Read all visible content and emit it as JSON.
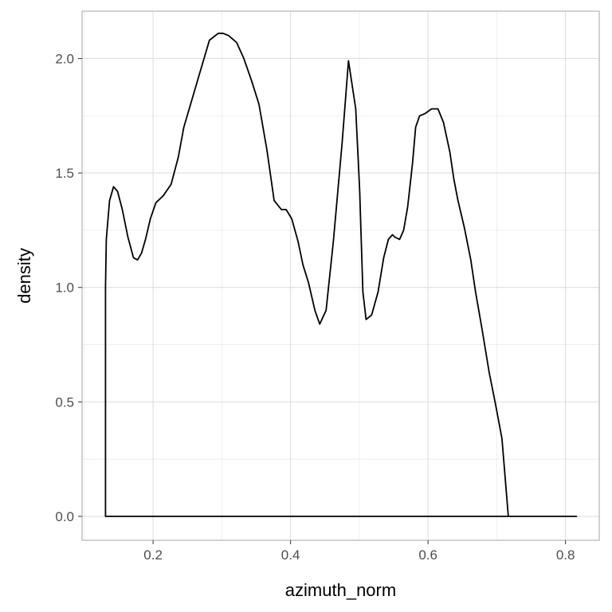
{
  "chart_data": {
    "type": "area",
    "xlabel": "azimuth_norm",
    "ylabel": "density",
    "xlim": [
      0.0967,
      0.8491
    ],
    "ylim": [
      -0.1044,
      2.2069
    ],
    "x_ticks": [
      {
        "value": 0.2,
        "label": "0.2"
      },
      {
        "value": 0.4,
        "label": "0.4"
      },
      {
        "value": 0.6,
        "label": "0.6"
      },
      {
        "value": 0.8,
        "label": "0.8"
      }
    ],
    "y_ticks": [
      {
        "value": 0.0,
        "label": "0.0"
      },
      {
        "value": 0.5,
        "label": "0.5"
      },
      {
        "value": 1.0,
        "label": "1.0"
      },
      {
        "value": 1.5,
        "label": "1.5"
      },
      {
        "value": 2.0,
        "label": "2.0"
      }
    ],
    "grid": true,
    "series": [
      {
        "x": [
          0.1308,
          0.132,
          0.1367,
          0.1425,
          0.1483,
          0.1553,
          0.1634,
          0.1715,
          0.1774,
          0.1832,
          0.189,
          0.196,
          0.2041,
          0.2146,
          0.2262,
          0.2367,
          0.2448,
          0.2564,
          0.2692,
          0.282,
          0.2948,
          0.3018,
          0.3099,
          0.3215,
          0.332,
          0.3436,
          0.3541,
          0.3657,
          0.3761,
          0.3866,
          0.3936,
          0.4017,
          0.411,
          0.418,
          0.4262,
          0.4355,
          0.4424,
          0.4517,
          0.4622,
          0.475,
          0.4843,
          0.4948,
          0.5006,
          0.5052,
          0.5099,
          0.518,
          0.5273,
          0.5355,
          0.5424,
          0.5482,
          0.5517,
          0.5587,
          0.5645,
          0.5703,
          0.5773,
          0.582,
          0.5878,
          0.5959,
          0.6052,
          0.6145,
          0.6226,
          0.6319,
          0.6378,
          0.6436,
          0.6529,
          0.6622,
          0.6692,
          0.6785,
          0.6889,
          0.6982,
          0.7075,
          0.7168,
          0.7261,
          0.7319,
          0.7389,
          0.7482,
          0.7586,
          0.768,
          0.7773,
          0.7866,
          0.7947,
          0.8029,
          0.8075,
          0.8121,
          0.8151,
          0.8161
        ],
        "y": [
          1.0,
          1.21,
          1.38,
          1.44,
          1.42,
          1.34,
          1.22,
          1.13,
          1.12,
          1.15,
          1.21,
          1.3,
          1.37,
          1.4,
          1.45,
          1.57,
          1.7,
          1.82,
          1.95,
          2.08,
          2.11,
          2.11,
          2.1,
          2.07,
          2.0,
          1.9,
          1.8,
          1.6,
          1.38,
          1.34,
          1.34,
          1.3,
          1.2,
          1.1,
          1.02,
          0.9,
          0.84,
          0.9,
          1.2,
          1.63,
          1.99,
          1.78,
          1.42,
          0.98,
          0.86,
          0.88,
          0.98,
          1.13,
          1.21,
          1.23,
          1.22,
          1.21,
          1.25,
          1.35,
          1.54,
          1.7,
          1.75,
          1.76,
          1.78,
          1.78,
          1.72,
          1.59,
          1.47,
          1.38,
          1.26,
          1.12,
          0.98,
          0.82,
          0.63,
          0.49,
          0.34,
          0.0,
          0.0,
          0.0,
          0.0,
          0.0,
          0.0,
          0.0,
          0.0,
          0.0,
          0.0,
          0.0,
          0.0,
          0.0,
          0.0,
          0.0
        ]
      }
    ]
  }
}
